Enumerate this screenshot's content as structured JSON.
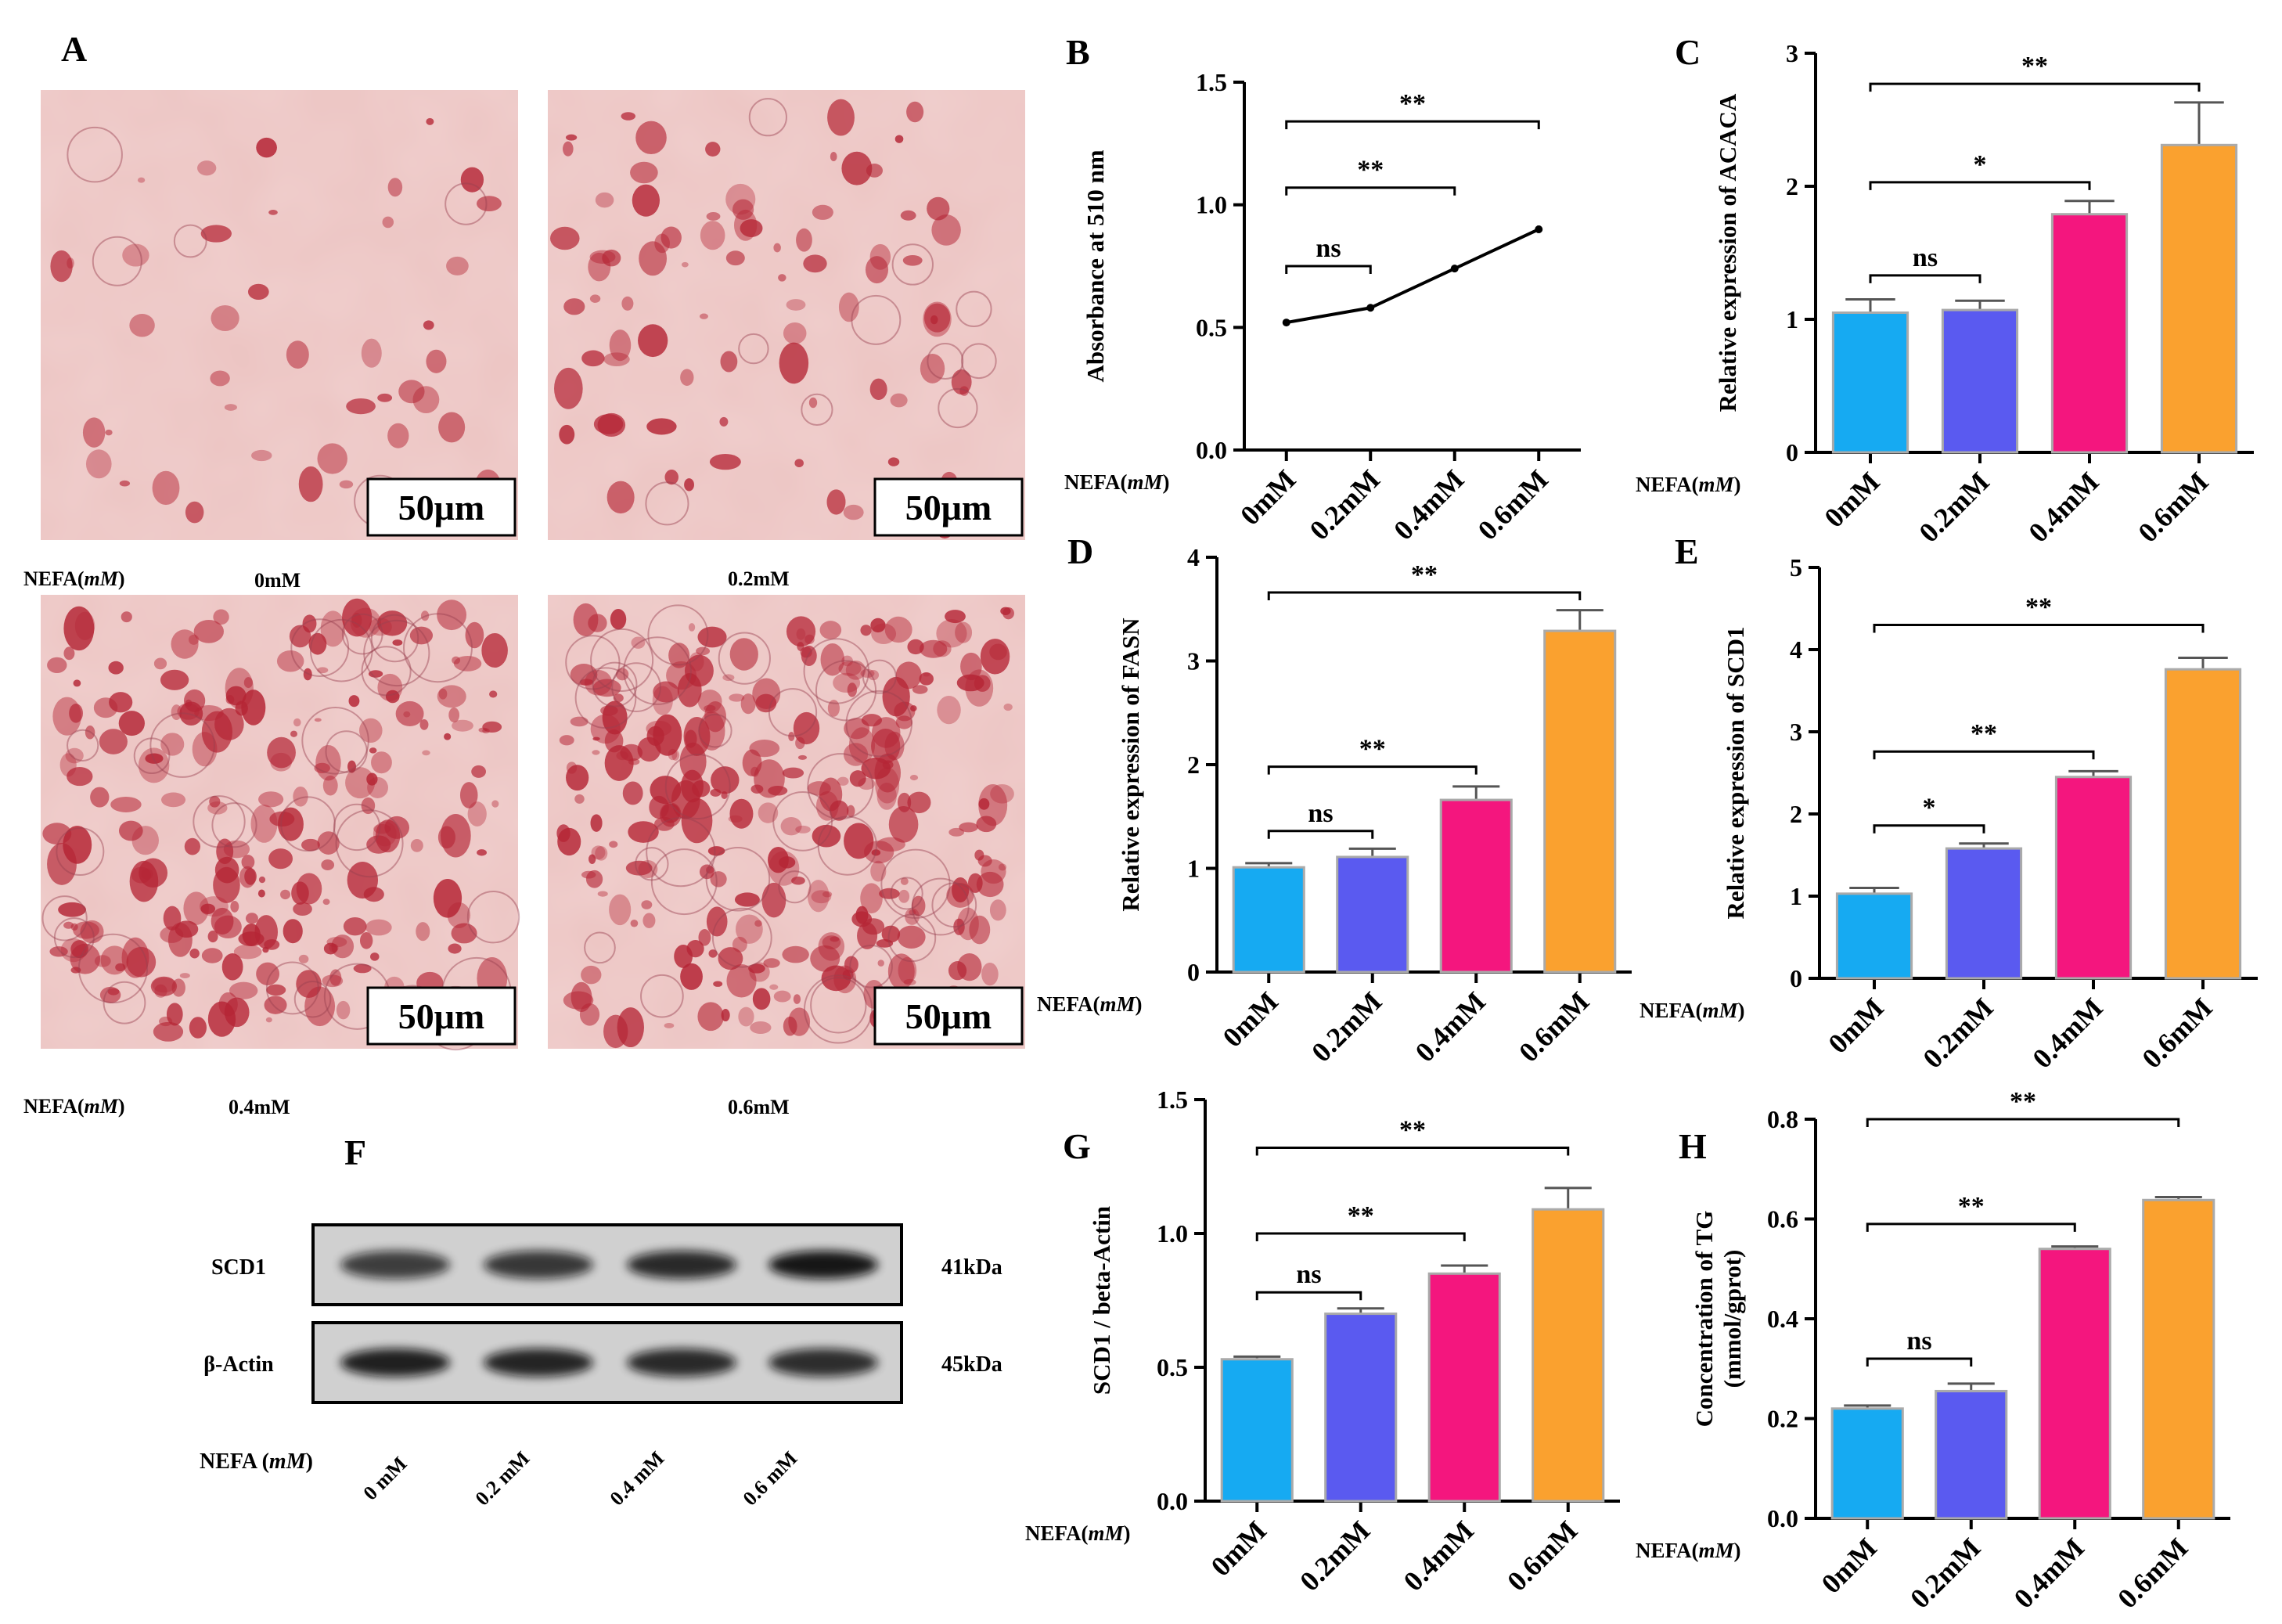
{
  "figure": {
    "panel_labels": {
      "A": "A",
      "B": "B",
      "C": "C",
      "D": "D",
      "E": "E",
      "F": "F",
      "G": "G",
      "H": "H"
    },
    "nefa_label": "NEFA(mM)",
    "nefa_label_prefix": "NEFA(",
    "nefa_label_unit": "mM",
    "nefa_label_suffix": ")",
    "nefa_label_f_prefix": "NEFA (",
    "colors": {
      "c0": "#16AAF2",
      "c1": "#5A5AF0",
      "c2": "#F4167E",
      "c3": "#FAA12F",
      "line": "#000000",
      "tissue": "#ecc4c2",
      "stain": "#b52535"
    }
  },
  "micrographs": [
    {
      "scale_bar": "50μm",
      "condition": "0mM"
    },
    {
      "scale_bar": "50μm",
      "condition": "0.2mM"
    },
    {
      "scale_bar": "50μm",
      "condition": "0.4mM"
    },
    {
      "scale_bar": "50μm",
      "condition": "0.6mM"
    }
  ],
  "western": {
    "bands": [
      "SCD1",
      "β-Actin"
    ],
    "sizes": [
      "41kDa",
      "45kDa"
    ],
    "lanes": [
      "0 mM",
      "0.2 mM",
      "0.4 mM",
      "0.6 mM"
    ],
    "intensity_scd1": [
      0.75,
      0.78,
      0.85,
      0.95
    ],
    "intensity_actin": [
      0.9,
      0.88,
      0.85,
      0.83
    ]
  },
  "chart_data": [
    {
      "panel": "B",
      "type": "line",
      "categories": [
        "0mM",
        "0.2mM",
        "0.4mM",
        "0.6mM"
      ],
      "values": [
        0.52,
        0.58,
        0.74,
        0.9
      ],
      "errors": [
        0.005,
        0.005,
        0.015,
        0.015
      ],
      "ylabel": "Absorbance at 510 nm",
      "ylim": [
        0,
        1.5
      ],
      "yticks": [
        "0.0",
        "0.5",
        "1.0",
        "1.5"
      ],
      "significance": [
        {
          "from": 0,
          "to": 1,
          "label": "ns",
          "y": 0.75
        },
        {
          "from": 0,
          "to": 2,
          "label": "**",
          "y": 1.07
        },
        {
          "from": 0,
          "to": 3,
          "label": "**",
          "y": 1.34
        }
      ]
    },
    {
      "panel": "C",
      "type": "bar",
      "categories": [
        "0mM",
        "0.2mM",
        "0.4mM",
        "0.6mM"
      ],
      "values": [
        1.05,
        1.07,
        1.79,
        2.31
      ],
      "errors": [
        0.1,
        0.07,
        0.1,
        0.32
      ],
      "ylabel": "Relative expression of ACACA",
      "ylim": [
        0,
        3
      ],
      "yticks": [
        "0",
        "1",
        "2",
        "3"
      ],
      "significance": [
        {
          "from": 0,
          "to": 1,
          "label": "ns",
          "y": 1.33
        },
        {
          "from": 0,
          "to": 2,
          "label": "*",
          "y": 2.03
        },
        {
          "from": 0,
          "to": 3,
          "label": "**",
          "y": 2.77
        }
      ]
    },
    {
      "panel": "D",
      "type": "bar",
      "categories": [
        "0mM",
        "0.2mM",
        "0.4mM",
        "0.6mM"
      ],
      "values": [
        1.01,
        1.11,
        1.66,
        3.29
      ],
      "errors": [
        0.04,
        0.08,
        0.13,
        0.2
      ],
      "ylabel": "Relative expression of FASN",
      "ylim": [
        0,
        4
      ],
      "yticks": [
        "0",
        "1",
        "2",
        "3",
        "4"
      ],
      "significance": [
        {
          "from": 0,
          "to": 1,
          "label": "ns",
          "y": 1.36
        },
        {
          "from": 0,
          "to": 2,
          "label": "**",
          "y": 1.98
        },
        {
          "from": 0,
          "to": 3,
          "label": "**",
          "y": 3.66
        }
      ]
    },
    {
      "panel": "E",
      "type": "bar",
      "categories": [
        "0mM",
        "0.2mM",
        "0.4mM",
        "0.6mM"
      ],
      "values": [
        1.03,
        1.58,
        2.45,
        3.76
      ],
      "errors": [
        0.07,
        0.06,
        0.07,
        0.14
      ],
      "ylabel": "Relative expression of SCD1",
      "ylim": [
        0,
        5
      ],
      "yticks": [
        "0",
        "1",
        "2",
        "3",
        "4",
        "5"
      ],
      "significance": [
        {
          "from": 0,
          "to": 1,
          "label": "*",
          "y": 1.86
        },
        {
          "from": 0,
          "to": 2,
          "label": "**",
          "y": 2.76
        },
        {
          "from": 0,
          "to": 3,
          "label": "**",
          "y": 4.3
        }
      ]
    },
    {
      "panel": "G",
      "type": "bar",
      "categories": [
        "0mM",
        "0.2mM",
        "0.4mM",
        "0.6mM"
      ],
      "values": [
        0.53,
        0.7,
        0.85,
        1.09
      ],
      "errors": [
        0.01,
        0.02,
        0.03,
        0.08
      ],
      "ylabel": "SCD1 / beta-Actin",
      "ylim": [
        0,
        1.5
      ],
      "yticks": [
        "0.0",
        "0.5",
        "1.0",
        "1.5"
      ],
      "significance": [
        {
          "from": 0,
          "to": 1,
          "label": "ns",
          "y": 0.78
        },
        {
          "from": 0,
          "to": 2,
          "label": "**",
          "y": 1.0
        },
        {
          "from": 0,
          "to": 3,
          "label": "**",
          "y": 1.32
        }
      ]
    },
    {
      "panel": "H",
      "type": "bar",
      "categories": [
        "0mM",
        "0.2mM",
        "0.4mM",
        "0.6mM"
      ],
      "values": [
        0.22,
        0.255,
        0.54,
        0.638
      ],
      "errors": [
        0.006,
        0.015,
        0.005,
        0.006
      ],
      "ylabel": "Concentration of TG",
      "ylabel2": "(mmol/gprot)",
      "ylim": [
        0,
        0.8
      ],
      "yticks": [
        "0.0",
        "0.2",
        "0.4",
        "0.6",
        "0.8"
      ],
      "significance": [
        {
          "from": 0,
          "to": 1,
          "label": "ns",
          "y": 0.32
        },
        {
          "from": 0,
          "to": 2,
          "label": "**",
          "y": 0.59
        },
        {
          "from": 0,
          "to": 3,
          "label": "**",
          "y": 0.8
        }
      ]
    }
  ]
}
